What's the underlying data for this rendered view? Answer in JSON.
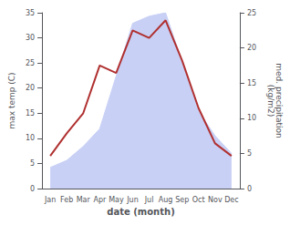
{
  "chart_data": {
    "type": "line",
    "categories": [
      "Jan",
      "Feb",
      "Mar",
      "Apr",
      "May",
      "Jun",
      "Jul",
      "Aug",
      "Sep",
      "Oct",
      "Nov",
      "Dec"
    ],
    "xlabel": "date (month)",
    "ylabel": "max temp (C)",
    "y2label": "med. precipitation\n(kg/m2)",
    "ylim": [
      0,
      35
    ],
    "yticks": [
      0,
      5,
      10,
      15,
      20,
      25,
      30,
      35
    ],
    "y2lim": [
      0,
      25
    ],
    "y2ticks": [
      0,
      5,
      10,
      15,
      20,
      25
    ],
    "grid": false,
    "series": [
      {
        "type": "area",
        "axis": "y2",
        "color": "#c8d0f5",
        "values": [
          3.0,
          4.0,
          6.0,
          8.5,
          16.0,
          23.5,
          24.5,
          25.0,
          18.0,
          11.0,
          7.5,
          5.0
        ]
      },
      {
        "type": "line",
        "axis": "y",
        "color": "#b03030",
        "values": [
          6.5,
          11.0,
          15.0,
          24.5,
          23.0,
          31.5,
          30.0,
          33.5,
          25.5,
          16.0,
          9.0,
          6.5
        ]
      }
    ]
  }
}
